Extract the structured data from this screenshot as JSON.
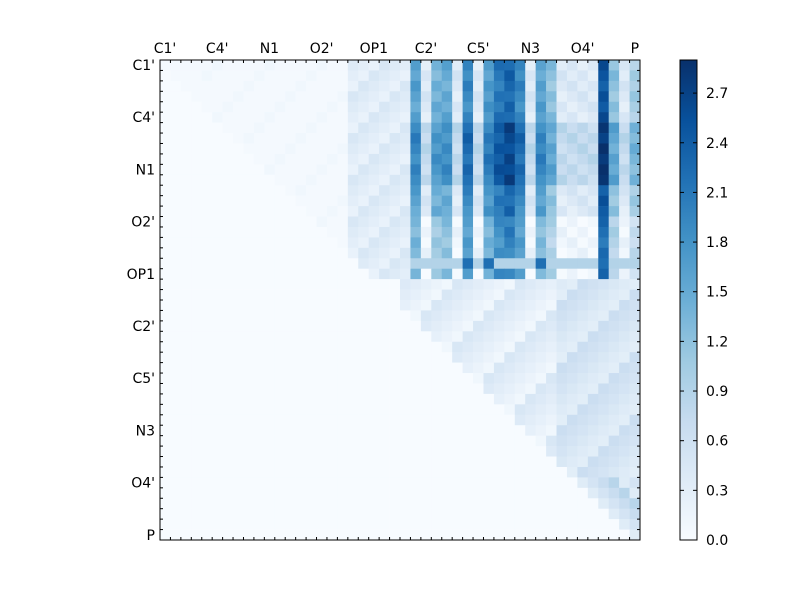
{
  "chart_data": {
    "type": "heatmap",
    "title": "",
    "xlabel": "",
    "ylabel": "",
    "grid": false,
    "legend": "colorbar-right",
    "n": 46,
    "x_tick_labels": [
      "C1'",
      "C4'",
      "N1",
      "O2'",
      "OP1",
      "C2'",
      "C5'",
      "N3",
      "O4'",
      "P"
    ],
    "y_tick_labels": [
      "C1'",
      "C4'",
      "N1",
      "O2'",
      "OP1",
      "C2'",
      "C5'",
      "N3",
      "O4'",
      "P"
    ],
    "value_range": [
      0.0,
      2.9
    ],
    "colorbar": {
      "ticks": [
        "0.0",
        "0.3",
        "0.6",
        "0.9",
        "1.2",
        "1.5",
        "1.8",
        "2.1",
        "2.4",
        "2.7"
      ],
      "colormap": "Blues",
      "low_color": "#f7fbff",
      "high_color": "#08306b"
    },
    "upper_triangle_summary": [
      {
        "rows": "C1'–OP1",
        "cols": "C1'–O2'",
        "level": "≈0.0–0.1"
      },
      {
        "rows": "C1'–OP1",
        "cols": "O2'–OP1",
        "level": "≈0.2–0.6"
      },
      {
        "rows": "C1'–OP1",
        "cols": "C2'–N3",
        "level": "≈1.0–2.9 (strongest band)"
      },
      {
        "rows": "C1'–OP1",
        "cols": "O4'–P",
        "level": "≈0.8–2.8"
      },
      {
        "rows": "OP1–O4'",
        "cols": "C2'–P",
        "level": "≈0.1–0.5"
      },
      {
        "rows": "O4'–P",
        "cols": "O4'–P",
        "level": "≈0.3–0.9"
      }
    ]
  }
}
